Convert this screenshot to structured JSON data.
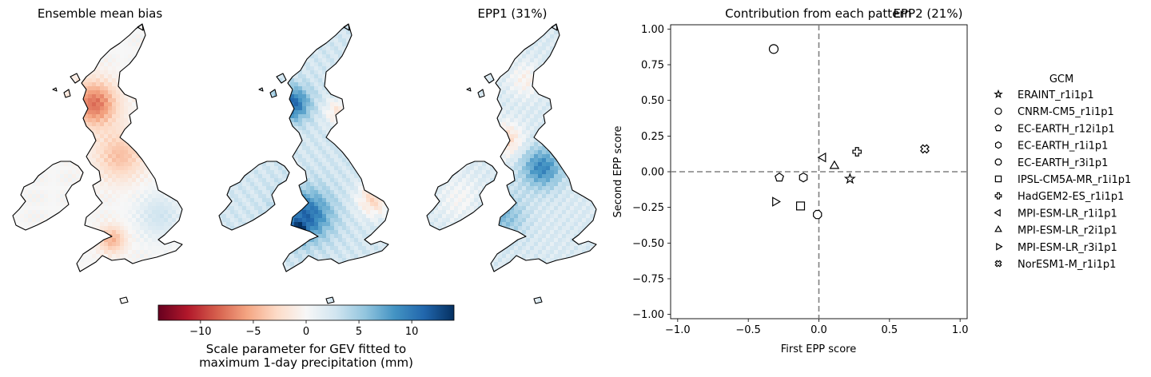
{
  "chart_data": [
    {
      "type": "heatmap",
      "title": "Ensemble mean bias"
    },
    {
      "type": "heatmap",
      "title": "EPP1 (31%)"
    },
    {
      "type": "heatmap",
      "title": "EPP2 (21%)"
    },
    {
      "type": "colorbar",
      "label_line1": "Scale parameter for GEV fitted to",
      "label_line2": "maximum 1-day precipitation (mm)",
      "range": [
        -14,
        14
      ],
      "ticks": [
        -10,
        -5,
        0,
        5,
        10
      ],
      "tick_labels": [
        "−10",
        "−5",
        "0",
        "5",
        "10"
      ],
      "colormap": [
        "#67001f",
        "#b2182b",
        "#d6604d",
        "#f4a582",
        "#fddbc7",
        "#f7f7f7",
        "#d1e5f0",
        "#92c5de",
        "#4393c3",
        "#2166ac",
        "#053061"
      ]
    },
    {
      "type": "scatter",
      "title": "Contribution from each pattern",
      "xlabel": "First EPP score",
      "ylabel": "Second EPP score",
      "xlim": [
        -1.05,
        1.05
      ],
      "ylim": [
        -1.03,
        1.03
      ],
      "xticks": [
        -1.0,
        -0.5,
        0.0,
        0.5,
        1.0
      ],
      "xtick_labels": [
        "−1.0",
        "−0.5",
        "0.0",
        "0.5",
        "1.0"
      ],
      "yticks": [
        -1.0,
        -0.75,
        -0.5,
        -0.25,
        0.0,
        0.25,
        0.5,
        0.75,
        1.0
      ],
      "ytick_labels": [
        "−1.00",
        "−0.75",
        "−0.50",
        "−0.25",
        "0.00",
        "0.25",
        "0.50",
        "0.75",
        "1.00"
      ],
      "reference_lines": [
        "x = 0",
        "y = 0"
      ],
      "legend_title": "GCM",
      "legend_placement": "right, outside plot",
      "series": [
        {
          "name": "ERAINT_r1i1p1",
          "marker": "star",
          "x": 0.22,
          "y": -0.05
        },
        {
          "name": "CNRM-CM5_r1i1p1",
          "marker": "circle",
          "x": -0.32,
          "y": 0.86
        },
        {
          "name": "EC-EARTH_r12i1p1",
          "marker": "pentagon",
          "x": -0.28,
          "y": -0.04
        },
        {
          "name": "EC-EARTH_r1i1p1",
          "marker": "hexagon",
          "x": -0.11,
          "y": -0.04
        },
        {
          "name": "EC-EARTH_r3i1p1",
          "marker": "octagon",
          "x": -0.01,
          "y": -0.3
        },
        {
          "name": "IPSL-CM5A-MR_r1i1p1",
          "marker": "square",
          "x": -0.13,
          "y": -0.24
        },
        {
          "name": "HadGEM2-ES_r1i1p1",
          "marker": "plus",
          "x": 0.27,
          "y": 0.14
        },
        {
          "name": "MPI-ESM-LR_r1i1p1",
          "marker": "triangle-left",
          "x": 0.03,
          "y": 0.1
        },
        {
          "name": "MPI-ESM-LR_r2i1p1",
          "marker": "triangle-up",
          "x": 0.11,
          "y": 0.04
        },
        {
          "name": "MPI-ESM-LR_r3i1p1",
          "marker": "triangle-right",
          "x": -0.31,
          "y": -0.21
        },
        {
          "name": "NorESM1-M_r1i1p1",
          "marker": "x-filled",
          "x": 0.75,
          "y": 0.16
        }
      ]
    }
  ]
}
